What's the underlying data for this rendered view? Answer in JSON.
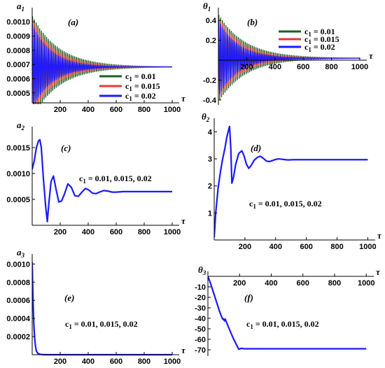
{
  "figure": {
    "chart_data": [
      {
        "id": "a",
        "type": "line",
        "panel_tag": "(a)",
        "xlabel": "τ",
        "ylabel": "a1",
        "ylabel_main": "a",
        "ylabel_sub": "1",
        "xlim": [
          0,
          1030
        ],
        "ylim": [
          0.00043,
          0.00108
        ],
        "xticks": [
          200,
          400,
          600,
          800,
          1000
        ],
        "xtick_labels": [
          "200",
          "400",
          "600",
          "800",
          "1000"
        ],
        "yticks": [
          0.0005,
          0.0006,
          0.0007,
          0.0008,
          0.0009,
          0.001
        ],
        "ytick_labels": [
          "0.0005",
          "0.0006",
          "0.0007",
          "0.0008",
          "0.0009",
          "0.0010"
        ],
        "legend_position": "right",
        "series": [
          {
            "name": "c1 = 0.01",
            "name_main": "c",
            "name_sub": "1",
            "name_rest": " = 0.01",
            "color": "#1b5e20",
            "model": {
              "kind": "damped_oscillation",
              "base": 0.000683,
              "amplitude": 0.00036,
              "decay_tau": 190,
              "period": 12.5,
              "phase": 0.0
            }
          },
          {
            "name": "c1 = 0.015",
            "name_main": "c",
            "name_sub": "1",
            "name_rest": " = 0.015",
            "color": "#e53935",
            "model": {
              "kind": "damped_oscillation",
              "base": 0.000683,
              "amplitude": 0.00033,
              "decay_tau": 165,
              "period": 12.5,
              "phase": 0.2
            }
          },
          {
            "name": "c1 = 0.02",
            "name_main": "c",
            "name_sub": "1",
            "name_rest": " = 0.02",
            "color": "#1a1aff",
            "model": {
              "kind": "damped_oscillation",
              "base": 0.000683,
              "amplitude": 0.0003,
              "decay_tau": 140,
              "period": 12.5,
              "phase": 0.4
            }
          }
        ]
      },
      {
        "id": "b",
        "type": "line",
        "panel_tag": "(b)",
        "xlabel": "τ",
        "ylabel": "θ1",
        "ylabel_main": "θ",
        "ylabel_sub": "1",
        "xlim": [
          0,
          1030
        ],
        "ylim": [
          -0.45,
          0.5
        ],
        "xticks": [
          200,
          400,
          600,
          800,
          1000
        ],
        "xtick_labels": [
          "200",
          "400",
          "600",
          "800",
          "1000"
        ],
        "yticks": [
          -0.4,
          -0.2,
          0.2,
          0.4
        ],
        "ytick_labels": [
          "-0.4",
          "-0.2",
          "0.2",
          "0.4"
        ],
        "legend_position": "top-right",
        "series": [
          {
            "name": "c1 = 0.01",
            "name_main": "c",
            "name_sub": "1",
            "name_rest": " = 0.01",
            "color": "#1b5e20",
            "model": {
              "kind": "damped_oscillation",
              "base": 0.02,
              "amplitude": 0.44,
              "decay_tau": 190,
              "period": 12.5,
              "phase": 0.0
            }
          },
          {
            "name": "c1 = 0.015",
            "name_main": "c",
            "name_sub": "1",
            "name_rest": " = 0.015",
            "color": "#e53935",
            "model": {
              "kind": "damped_oscillation",
              "base": 0.02,
              "amplitude": 0.41,
              "decay_tau": 165,
              "period": 12.5,
              "phase": 0.2
            }
          },
          {
            "name": "c1 = 0.02",
            "name_main": "c",
            "name_sub": "1",
            "name_rest": " = 0.02",
            "color": "#1a1aff",
            "model": {
              "kind": "damped_oscillation",
              "base": 0.02,
              "amplitude": 0.38,
              "decay_tau": 140,
              "period": 12.5,
              "phase": 0.4
            }
          }
        ]
      },
      {
        "id": "c",
        "type": "line",
        "panel_tag": "(c)",
        "xlabel": "τ",
        "ylabel": "a2",
        "ylabel_main": "a",
        "ylabel_sub": "2",
        "xlim": [
          0,
          1030
        ],
        "ylim": [
          0.0,
          0.00185
        ],
        "xticks": [
          200,
          400,
          600,
          800,
          1000
        ],
        "xtick_labels": [
          "200",
          "400",
          "600",
          "800",
          "1000"
        ],
        "yticks": [
          0.0005,
          0.001,
          0.0015
        ],
        "ytick_labels": [
          "0.0005",
          "0.0010",
          "0.0015"
        ],
        "annotation": "c1 = 0.01, 0.015, 0.02",
        "annotation_main": "c",
        "annotation_sub": "1",
        "annotation_rest": " = 0.01, 0.015, 0.02",
        "series": [
          {
            "name": "",
            "color": "#1a1aff",
            "points": [
              [
                0,
                0.00108
              ],
              [
                15,
                0.00125
              ],
              [
                30,
                0.0015
              ],
              [
                45,
                0.00163
              ],
              [
                55,
                0.00165
              ],
              [
                65,
                0.0015
              ],
              [
                80,
                0.0009
              ],
              [
                95,
                0.0004
              ],
              [
                108,
                7e-05
              ],
              [
                118,
                0.0004
              ],
              [
                135,
                0.00085
              ],
              [
                152,
                0.00095
              ],
              [
                170,
                0.0007
              ],
              [
                190,
                0.00045
              ],
              [
                210,
                0.00047
              ],
              [
                230,
                0.0006
              ],
              [
                255,
                0.0008
              ],
              [
                280,
                0.00073
              ],
              [
                305,
                0.00057
              ],
              [
                330,
                0.00056
              ],
              [
                355,
                0.00064
              ],
              [
                380,
                0.00071
              ],
              [
                405,
                0.00068
              ],
              [
                430,
                0.00062
              ],
              [
                455,
                0.00061
              ],
              [
                480,
                0.00064
              ],
              [
                510,
                0.00067
              ],
              [
                540,
                0.00066
              ],
              [
                570,
                0.00064
              ],
              [
                600,
                0.00064
              ],
              [
                650,
                0.00065
              ],
              [
                700,
                0.00065
              ],
              [
                800,
                0.00065
              ],
              [
                900,
                0.00065
              ],
              [
                1000,
                0.00065
              ]
            ]
          }
        ]
      },
      {
        "id": "d",
        "type": "line",
        "panel_tag": "(d)",
        "xlabel": "τ",
        "ylabel": "θ2",
        "ylabel_main": "θ",
        "ylabel_sub": "2",
        "xlim": [
          0,
          1030
        ],
        "ylim": [
          0.0,
          4.4
        ],
        "xticks": [
          200,
          400,
          600,
          800,
          1000
        ],
        "xtick_labels": [
          "200",
          "400",
          "600",
          "800",
          "1000"
        ],
        "yticks": [
          1,
          2,
          3,
          4
        ],
        "ytick_labels": [
          "1",
          "2",
          "3",
          "4"
        ],
        "annotation": "c1 = 0.01, 0.015, 0.02",
        "annotation_main": "c",
        "annotation_sub": "1",
        "annotation_rest": " = 0.01, 0.015, 0.02",
        "series": [
          {
            "name": "",
            "color": "#1a1aff",
            "points": [
              [
                0,
                0.1
              ],
              [
                10,
                1.0
              ],
              [
                25,
                1.9
              ],
              [
                40,
                2.5
              ],
              [
                55,
                3.0
              ],
              [
                70,
                3.4
              ],
              [
                82,
                3.8
              ],
              [
                95,
                4.1
              ],
              [
                100,
                4.2
              ],
              [
                108,
                3.4
              ],
              [
                115,
                2.1
              ],
              [
                125,
                2.3
              ],
              [
                140,
                2.8
              ],
              [
                160,
                3.2
              ],
              [
                180,
                3.3
              ],
              [
                195,
                3.1
              ],
              [
                210,
                2.8
              ],
              [
                225,
                2.65
              ],
              [
                240,
                2.75
              ],
              [
                260,
                2.95
              ],
              [
                280,
                3.05
              ],
              [
                300,
                3.1
              ],
              [
                320,
                3.02
              ],
              [
                340,
                2.92
              ],
              [
                360,
                2.9
              ],
              [
                380,
                2.94
              ],
              [
                400,
                2.98
              ],
              [
                420,
                3.0
              ],
              [
                450,
                2.98
              ],
              [
                480,
                2.96
              ],
              [
                520,
                2.97
              ],
              [
                600,
                2.97
              ],
              [
                700,
                2.97
              ],
              [
                800,
                2.97
              ],
              [
                900,
                2.97
              ],
              [
                1000,
                2.97
              ]
            ]
          }
        ]
      },
      {
        "id": "e",
        "type": "line",
        "panel_tag": "(e)",
        "xlabel": "τ",
        "ylabel": "a3",
        "ylabel_main": "a",
        "ylabel_sub": "3",
        "xlim": [
          0,
          1030
        ],
        "ylim": [
          0.0,
          0.00108
        ],
        "xticks": [
          200,
          400,
          600,
          800,
          1000
        ],
        "xtick_labels": [
          "200",
          "400",
          "600",
          "800",
          "1000"
        ],
        "yticks": [
          0.0002,
          0.0004,
          0.0006,
          0.0008,
          0.001
        ],
        "ytick_labels": [
          "0.0002",
          "0.0004",
          "0.0006",
          "0.0008",
          "0.0010"
        ],
        "annotation": "c1 = 0.01, 0.015, 0.02",
        "annotation_main": "c",
        "annotation_sub": "1",
        "annotation_rest": " = 0.01, 0.015, 0.02",
        "series": [
          {
            "name": "",
            "color": "#1a1aff",
            "points": [
              [
                0,
                0.00102
              ],
              [
                3,
                0.0008
              ],
              [
                6,
                0.0006
              ],
              [
                9,
                0.00045
              ],
              [
                12,
                0.00033
              ],
              [
                16,
                0.00022
              ],
              [
                20,
                0.00014
              ],
              [
                25,
                8e-05
              ],
              [
                30,
                4e-05
              ],
              [
                40,
                1.5e-05
              ],
              [
                55,
                5e-06
              ],
              [
                70,
                2e-06
              ],
              [
                100,
                0.0
              ],
              [
                200,
                0.0
              ],
              [
                400,
                0.0
              ],
              [
                600,
                0.0
              ],
              [
                800,
                0.0
              ],
              [
                1000,
                0.0
              ]
            ]
          }
        ]
      },
      {
        "id": "f",
        "type": "line",
        "panel_tag": "(f)",
        "xlabel": "τ",
        "ylabel": "θ3",
        "ylabel_main": "θ",
        "ylabel_sub": "3",
        "xlim": [
          0,
          1030
        ],
        "ylim": [
          -76,
          2
        ],
        "xticks": [
          200,
          400,
          600,
          800,
          1000
        ],
        "xtick_labels": [
          "200",
          "400",
          "600",
          "800",
          "1000"
        ],
        "yticks": [
          -10,
          -20,
          -30,
          -40,
          -50,
          -60,
          -70
        ],
        "ytick_labels": [
          "-10",
          "-20",
          "-30",
          "-40",
          "-50",
          "-60",
          "-70"
        ],
        "annotation": "c1 = 0.01, 0.015, 0.02",
        "annotation_main": "c",
        "annotation_sub": "1",
        "annotation_rest": " = 0.01, 0.015, 0.02",
        "series": [
          {
            "name": "",
            "color": "#1a1aff",
            "points": [
              [
                0,
                0.0
              ],
              [
                15,
                -6.0
              ],
              [
                30,
                -13.0
              ],
              [
                45,
                -20.0
              ],
              [
                60,
                -27.0
              ],
              [
                75,
                -34.0
              ],
              [
                88,
                -39.0
              ],
              [
                95,
                -41.0
              ],
              [
                100,
                -40.5
              ],
              [
                105,
                -42.5
              ],
              [
                110,
                -40.8
              ],
              [
                115,
                -43.0
              ],
              [
                125,
                -46.5
              ],
              [
                140,
                -52.0
              ],
              [
                160,
                -59.0
              ],
              [
                180,
                -65.0
              ],
              [
                195,
                -69.5
              ],
              [
                200,
                -69.2
              ],
              [
                210,
                -68.6
              ],
              [
                225,
                -68.9
              ],
              [
                240,
                -69.0
              ],
              [
                300,
                -69.0
              ],
              [
                400,
                -69.0
              ],
              [
                600,
                -69.0
              ],
              [
                800,
                -69.0
              ],
              [
                1000,
                -69.0
              ]
            ]
          }
        ]
      }
    ]
  }
}
